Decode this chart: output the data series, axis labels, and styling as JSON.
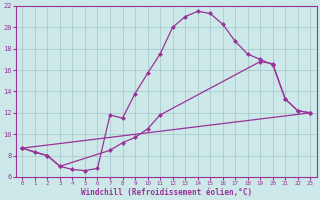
{
  "xlabel": "Windchill (Refroidissement éolien,°C)",
  "background_color": "#cce8e8",
  "grid_color": "#aacccc",
  "line_color": "#993399",
  "xlim": [
    -0.5,
    23.5
  ],
  "ylim": [
    6,
    22
  ],
  "yticks": [
    6,
    8,
    10,
    12,
    14,
    16,
    18,
    20,
    22
  ],
  "xticks": [
    0,
    1,
    2,
    3,
    4,
    5,
    6,
    7,
    8,
    9,
    10,
    11,
    12,
    13,
    14,
    15,
    16,
    17,
    18,
    19,
    20,
    21,
    22,
    23
  ],
  "line1_x": [
    0,
    1,
    2,
    3,
    4,
    5,
    6,
    7,
    8,
    9,
    10,
    11,
    12,
    13,
    14,
    15,
    16,
    17,
    18,
    19,
    20,
    21,
    22,
    23
  ],
  "line1_y": [
    8.7,
    8.3,
    8.0,
    7.0,
    6.7,
    6.6,
    6.8,
    11.8,
    11.5,
    13.8,
    15.7,
    17.5,
    20.0,
    21.0,
    21.5,
    21.3,
    20.3,
    18.7,
    17.5,
    17.0,
    16.5,
    13.3,
    12.2,
    12.0
  ],
  "line2_x": [
    0,
    2,
    3,
    7,
    8,
    9,
    10,
    11,
    19,
    20,
    21,
    22,
    23
  ],
  "line2_y": [
    8.7,
    8.0,
    7.0,
    8.5,
    9.2,
    9.7,
    10.5,
    11.8,
    16.8,
    16.6,
    13.3,
    12.2,
    12.0
  ],
  "line3_x": [
    0,
    23
  ],
  "line3_y": [
    8.7,
    12.0
  ]
}
